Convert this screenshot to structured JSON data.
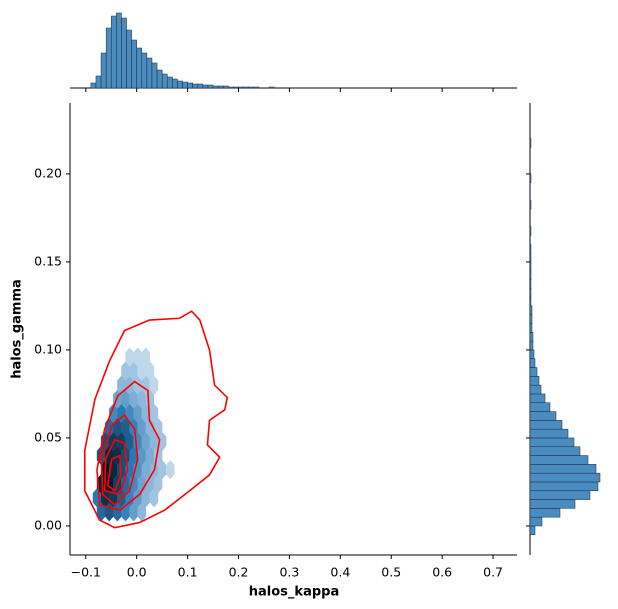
{
  "chart_data": [
    {
      "type": "hexbin",
      "xlabel": "halos_kappa",
      "ylabel": "halos_gamma",
      "xlim": [
        -0.131,
        0.747
      ],
      "ylim": [
        -0.0165,
        0.2403
      ],
      "xticks": [
        {
          "value": -0.1,
          "label": "−0.1"
        },
        {
          "value": 0,
          "label": "0.0"
        },
        0.1,
        0.2,
        0.3,
        0.4,
        0.5,
        0.6,
        0.7
      ],
      "yticks": [
        {
          "value": 0,
          "label": "0.00"
        },
        0.05,
        {
          "value": 0.1,
          "label": "0.10"
        },
        0.15,
        {
          "value": 0.2,
          "label": "0.20"
        }
      ],
      "hexbin": {
        "x": [
          -0.07,
          -0.054,
          -0.038,
          -0.022,
          -0.006,
          0.01,
          -0.078,
          -0.062,
          -0.046,
          -0.03,
          -0.014,
          0.002,
          0.018,
          0.034,
          -0.07,
          -0.054,
          -0.038,
          -0.022,
          -0.006,
          0.01,
          0.026,
          0.042,
          -0.062,
          -0.046,
          -0.03,
          -0.014,
          0.002,
          0.018,
          0.034,
          0.05,
          0.066,
          -0.07,
          -0.054,
          -0.038,
          -0.022,
          -0.006,
          0.01,
          0.026,
          0.042,
          -0.062,
          -0.046,
          -0.03,
          -0.014,
          0.002,
          0.018,
          0.034,
          0.05,
          -0.054,
          -0.038,
          -0.022,
          -0.006,
          0.01,
          0.026,
          0.042,
          -0.046,
          -0.03,
          -0.014,
          0.002,
          0.018,
          0.034,
          -0.038,
          -0.022,
          -0.006,
          0.01,
          0.026,
          -0.03,
          -0.014,
          0.002,
          0.018,
          0.034,
          -0.022,
          -0.006,
          0.01,
          0.026,
          -0.014,
          0.002,
          0.018
        ],
        "y": [
          0.008,
          0.008,
          0.008,
          0.008,
          0.008,
          0.008,
          0.016,
          0.016,
          0.016,
          0.016,
          0.016,
          0.016,
          0.016,
          0.016,
          0.024,
          0.024,
          0.024,
          0.024,
          0.024,
          0.024,
          0.024,
          0.024,
          0.032,
          0.032,
          0.032,
          0.032,
          0.032,
          0.032,
          0.032,
          0.032,
          0.032,
          0.04,
          0.04,
          0.04,
          0.04,
          0.04,
          0.04,
          0.04,
          0.04,
          0.048,
          0.048,
          0.048,
          0.048,
          0.048,
          0.048,
          0.048,
          0.048,
          0.056,
          0.056,
          0.056,
          0.056,
          0.056,
          0.056,
          0.056,
          0.064,
          0.064,
          0.064,
          0.064,
          0.064,
          0.064,
          0.072,
          0.072,
          0.072,
          0.072,
          0.072,
          0.08,
          0.08,
          0.08,
          0.08,
          0.08,
          0.088,
          0.088,
          0.088,
          0.088,
          0.096,
          0.096,
          0.096
        ],
        "counts": [
          20,
          30,
          20,
          12,
          6,
          3,
          15,
          60,
          50,
          25,
          12,
          6,
          3,
          2,
          80,
          90,
          45,
          20,
          10,
          5,
          3,
          2,
          95,
          70,
          35,
          15,
          8,
          4,
          3,
          2,
          1,
          30,
          70,
          60,
          35,
          15,
          7,
          4,
          2,
          35,
          50,
          45,
          25,
          10,
          5,
          3,
          2,
          20,
          30,
          25,
          12,
          6,
          3,
          2,
          10,
          15,
          10,
          6,
          3,
          2,
          5,
          6,
          4,
          3,
          2,
          3,
          3,
          2,
          2,
          1,
          2,
          2,
          1,
          1,
          1,
          1,
          1
        ]
      },
      "contour_color": "#ff0000",
      "contours": [
        {
          "x": [
            -0.073,
            -0.102,
            -0.102,
            -0.082,
            -0.053,
            -0.024,
            0.025,
            0.084,
            0.108,
            0.124,
            0.143,
            0.153,
            0.178,
            0.173,
            0.143,
            0.139,
            0.163,
            0.143,
            0.104,
            0.055,
            0.006,
            -0.043
          ],
          "y": [
            0.0034,
            0.02,
            0.043,
            0.072,
            0.094,
            0.111,
            0.117,
            0.118,
            0.122,
            0.117,
            0.1,
            0.08,
            0.073,
            0.066,
            0.06,
            0.046,
            0.039,
            0.029,
            0.02,
            0.009,
            0.002,
            -0.001
          ]
        },
        {
          "x": [
            -0.073,
            -0.078,
            -0.063,
            -0.037,
            -0.004,
            0.022,
            0.025,
            0.045,
            0.035,
            0.006,
            -0.033
          ],
          "y": [
            0.012,
            0.032,
            0.055,
            0.074,
            0.082,
            0.077,
            0.06,
            0.049,
            0.032,
            0.018,
            0.009
          ]
        },
        {
          "x": [
            -0.067,
            -0.069,
            -0.049,
            -0.024,
            -0.004,
            0.002,
            -0.014,
            -0.043
          ],
          "y": [
            0.018,
            0.038,
            0.057,
            0.063,
            0.055,
            0.038,
            0.02,
            0.012
          ]
        },
        {
          "x": [
            -0.063,
            -0.061,
            -0.043,
            -0.024,
            -0.018,
            -0.033
          ],
          "y": [
            0.02,
            0.038,
            0.049,
            0.047,
            0.032,
            0.018
          ]
        },
        {
          "x": [
            -0.057,
            -0.049,
            -0.033,
            -0.031,
            -0.043
          ],
          "y": [
            0.023,
            0.038,
            0.04,
            0.029,
            0.02
          ]
        }
      ]
    },
    {
      "type": "histogram",
      "orientation": "vertical",
      "color": "#4a8cc0",
      "ylim": [
        0,
        80
      ],
      "bins": [
        -0.09,
        -0.08,
        -0.07,
        -0.06,
        -0.05,
        -0.04,
        -0.03,
        -0.02,
        -0.01,
        0,
        0.01,
        0.02,
        0.03,
        0.04,
        0.05,
        0.06,
        0.07,
        0.08,
        0.09,
        0.1,
        0.11,
        0.12,
        0.13,
        0.14,
        0.15,
        0.16,
        0.17,
        0.18,
        0.19,
        0.2,
        0.21,
        0.22,
        0.23,
        0.24,
        0.25,
        0.26,
        0.27,
        0.28,
        0.29,
        0.3,
        0.31
      ],
      "counts": [
        5,
        12,
        35,
        60,
        72,
        75,
        70,
        58,
        48,
        40,
        35,
        30,
        25,
        18,
        14,
        11,
        9,
        7,
        6,
        5,
        4,
        4,
        3,
        3,
        2,
        2,
        2,
        1,
        1,
        1,
        1,
        1,
        1,
        0,
        0,
        1,
        0,
        0,
        0,
        0
      ]
    },
    {
      "type": "histogram",
      "orientation": "horizontal",
      "color": "#4a8cc0",
      "xlim": [
        0,
        80
      ],
      "bins": [
        -0.005,
        0,
        0.005,
        0.01,
        0.015,
        0.02,
        0.025,
        0.03,
        0.035,
        0.04,
        0.045,
        0.05,
        0.055,
        0.06,
        0.065,
        0.07,
        0.075,
        0.08,
        0.085,
        0.09,
        0.095,
        0.1,
        0.105,
        0.11,
        0.115,
        0.12,
        0.125,
        0.13,
        0.135,
        0.14,
        0.145,
        0.15,
        0.155,
        0.16,
        0.165,
        0.17,
        0.175,
        0.18,
        0.185,
        0.19,
        0.195,
        0.2,
        0.205,
        0.21,
        0.215,
        0.22
      ],
      "counts": [
        5,
        12,
        30,
        45,
        60,
        68,
        70,
        66,
        58,
        50,
        44,
        38,
        32,
        26,
        20,
        15,
        11,
        9,
        7,
        5,
        4,
        3,
        3,
        2,
        2,
        2,
        1,
        1,
        1,
        1,
        1,
        1,
        1,
        0,
        1,
        0,
        0,
        1,
        0,
        0,
        1,
        0,
        0,
        0,
        1
      ]
    }
  ]
}
